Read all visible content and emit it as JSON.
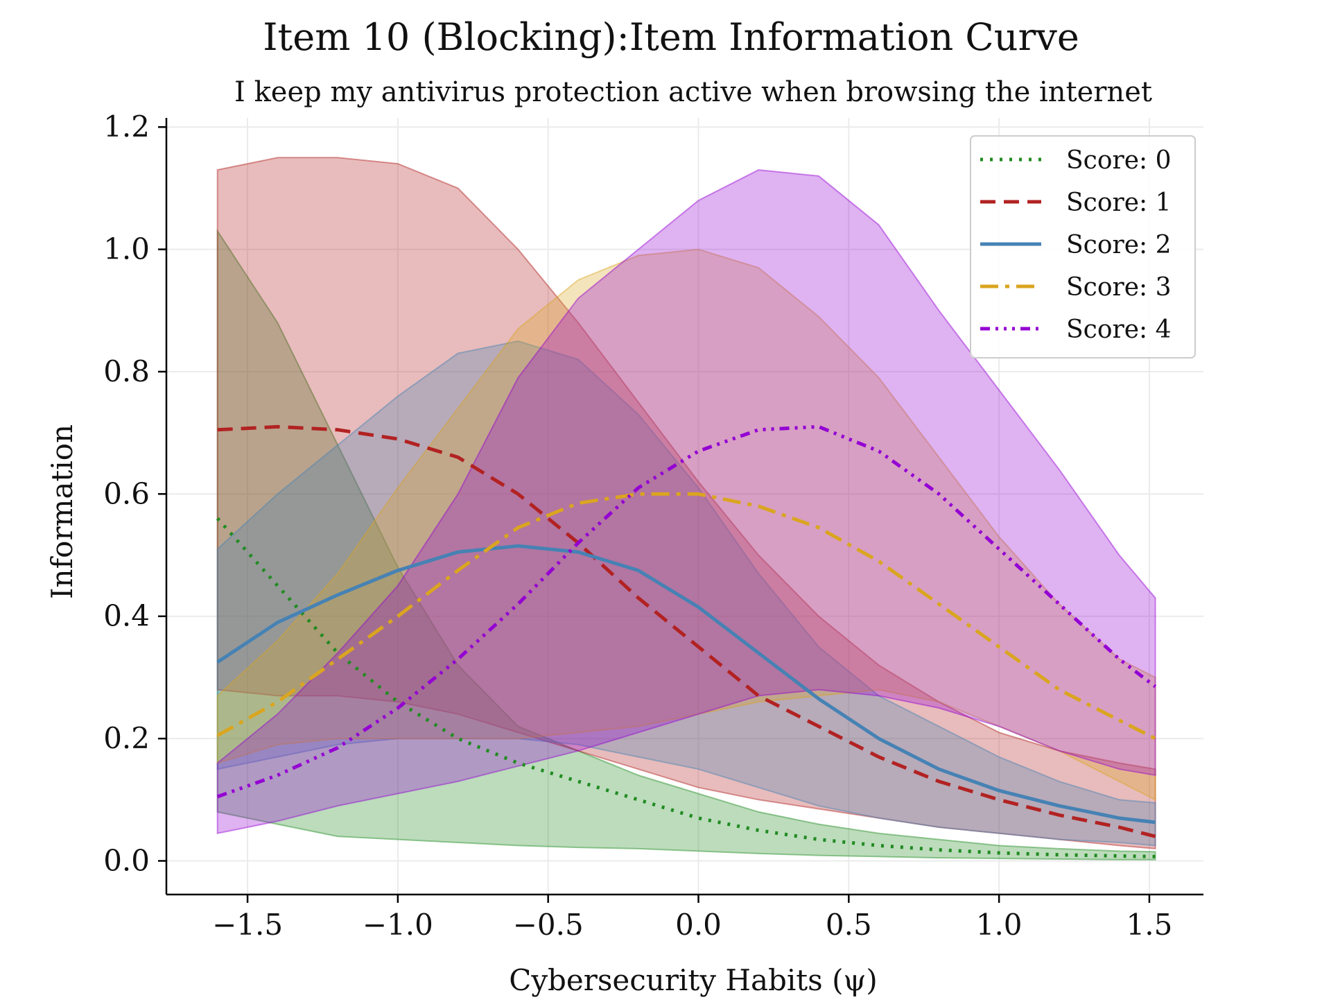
{
  "chart_data": {
    "type": "line",
    "title": "Item 10 (Blocking):Item Information Curve",
    "subtitle": "I keep my antivirus protection active when browsing the internet",
    "xlabel": "Cybersecurity Habits (ψ)",
    "ylabel": "Information",
    "xlim": [
      -1.77,
      1.68
    ],
    "ylim": [
      -0.055,
      1.215
    ],
    "xticks": [
      -1.5,
      -1.0,
      -0.5,
      0.0,
      0.5,
      1.0,
      1.5
    ],
    "xtick_labels": [
      "−1.5",
      "−1.0",
      "−0.5",
      "0.0",
      "0.5",
      "1.0",
      "1.5"
    ],
    "yticks": [
      0.0,
      0.2,
      0.4,
      0.6,
      0.8,
      1.0,
      1.2
    ],
    "ytick_labels": [
      "0.0",
      "0.2",
      "0.4",
      "0.6",
      "0.8",
      "1.0",
      "1.2"
    ],
    "grid": true,
    "legend_position": "top-right",
    "x": [
      -1.6,
      -1.4,
      -1.2,
      -1.0,
      -0.8,
      -0.6,
      -0.4,
      -0.2,
      0.0,
      0.2,
      0.4,
      0.6,
      0.8,
      1.0,
      1.2,
      1.4,
      1.52
    ],
    "series": [
      {
        "name": "Score: 0",
        "color": "#228b22",
        "dash": "4,10",
        "values": [
          0.56,
          0.45,
          0.34,
          0.26,
          0.2,
          0.16,
          0.13,
          0.1,
          0.07,
          0.05,
          0.035,
          0.025,
          0.018,
          0.013,
          0.01,
          0.008,
          0.007
        ],
        "band_upper": [
          1.03,
          0.88,
          0.68,
          0.48,
          0.32,
          0.22,
          0.18,
          0.14,
          0.11,
          0.08,
          0.06,
          0.045,
          0.035,
          0.025,
          0.02,
          0.016,
          0.015
        ],
        "band_lower": [
          0.08,
          0.06,
          0.04,
          0.035,
          0.03,
          0.025,
          0.022,
          0.02,
          0.016,
          0.012,
          0.009,
          0.007,
          0.005,
          0.004,
          0.003,
          0.002,
          0.002
        ]
      },
      {
        "name": "Score: 1",
        "color": "#b22222",
        "dash": "22,12",
        "values": [
          0.705,
          0.71,
          0.705,
          0.69,
          0.66,
          0.6,
          0.52,
          0.43,
          0.35,
          0.27,
          0.22,
          0.17,
          0.13,
          0.1,
          0.075,
          0.055,
          0.04
        ],
        "band_upper": [
          1.13,
          1.15,
          1.15,
          1.14,
          1.1,
          1.0,
          0.88,
          0.75,
          0.62,
          0.5,
          0.4,
          0.32,
          0.26,
          0.21,
          0.18,
          0.16,
          0.15
        ],
        "band_lower": [
          0.28,
          0.27,
          0.27,
          0.26,
          0.24,
          0.21,
          0.18,
          0.15,
          0.12,
          0.1,
          0.085,
          0.07,
          0.055,
          0.045,
          0.035,
          0.025,
          0.02
        ]
      },
      {
        "name": "Score: 2",
        "color": "#4682b4",
        "dash": "",
        "values": [
          0.325,
          0.39,
          0.435,
          0.475,
          0.505,
          0.515,
          0.505,
          0.475,
          0.415,
          0.34,
          0.265,
          0.2,
          0.15,
          0.115,
          0.09,
          0.07,
          0.063
        ],
        "band_upper": [
          0.51,
          0.6,
          0.68,
          0.76,
          0.83,
          0.85,
          0.82,
          0.73,
          0.61,
          0.47,
          0.35,
          0.27,
          0.22,
          0.17,
          0.13,
          0.1,
          0.095
        ],
        "band_lower": [
          0.15,
          0.17,
          0.19,
          0.2,
          0.2,
          0.2,
          0.19,
          0.17,
          0.15,
          0.12,
          0.09,
          0.07,
          0.055,
          0.045,
          0.035,
          0.03,
          0.025
        ]
      },
      {
        "name": "Score: 3",
        "color": "#daa520",
        "dash": "26,10,6,10",
        "values": [
          0.205,
          0.26,
          0.33,
          0.4,
          0.475,
          0.545,
          0.585,
          0.6,
          0.6,
          0.58,
          0.545,
          0.49,
          0.42,
          0.35,
          0.28,
          0.23,
          0.2
        ],
        "band_upper": [
          0.27,
          0.36,
          0.47,
          0.61,
          0.74,
          0.87,
          0.95,
          0.99,
          1.0,
          0.97,
          0.89,
          0.79,
          0.66,
          0.53,
          0.42,
          0.33,
          0.3
        ],
        "band_lower": [
          0.16,
          0.19,
          0.2,
          0.2,
          0.2,
          0.2,
          0.21,
          0.22,
          0.24,
          0.26,
          0.27,
          0.28,
          0.26,
          0.22,
          0.18,
          0.13,
          0.1
        ]
      },
      {
        "name": "Score: 4",
        "color": "#9400d3",
        "dash": "14,8,4,8,4,8,4,8",
        "values": [
          0.105,
          0.14,
          0.185,
          0.25,
          0.33,
          0.42,
          0.52,
          0.61,
          0.67,
          0.705,
          0.71,
          0.67,
          0.6,
          0.51,
          0.42,
          0.33,
          0.285
        ],
        "band_upper": [
          0.16,
          0.24,
          0.34,
          0.45,
          0.6,
          0.79,
          0.92,
          1.0,
          1.08,
          1.13,
          1.12,
          1.04,
          0.9,
          0.77,
          0.64,
          0.5,
          0.43
        ],
        "band_lower": [
          0.045,
          0.065,
          0.09,
          0.11,
          0.13,
          0.155,
          0.18,
          0.21,
          0.24,
          0.27,
          0.28,
          0.27,
          0.25,
          0.22,
          0.18,
          0.15,
          0.14
        ]
      }
    ]
  }
}
